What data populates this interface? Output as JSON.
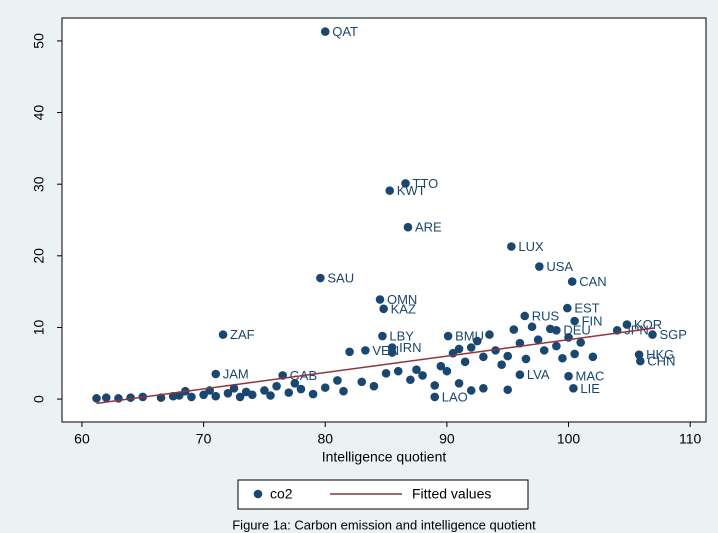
{
  "chart_data": {
    "type": "scatter",
    "caption": "Figure 1a: Carbon emission and intelligence quotient",
    "xlabel": "Intelligence quotient",
    "xlim": [
      58.36,
      111.3
    ],
    "ylim": [
      -3.2,
      53.2
    ],
    "xticks": [
      60,
      70,
      80,
      90,
      100,
      110
    ],
    "yticks": [
      0,
      10,
      20,
      30,
      40,
      50
    ],
    "series": [
      {
        "name": "co2",
        "color": "#1a476f",
        "kind": "scatter",
        "x": [
          80,
          86.6,
          85.3,
          86.8,
          95.3,
          97.6,
          100.3,
          79.6,
          84.5,
          84.8,
          99.9,
          104.8,
          104,
          106.9,
          105.8,
          105.9,
          71.6,
          84.7,
          90.1,
          96.4,
          100.5,
          99,
          100,
          100.4,
          96,
          71,
          76.5,
          85.5,
          83.3,
          89,
          61.2,
          62,
          63,
          64,
          65,
          66.5,
          67.5,
          68,
          68.5,
          69,
          70,
          70.5,
          71,
          72,
          72.5,
          73,
          73.5,
          74,
          75,
          75.5,
          76,
          77,
          77.5,
          78,
          79,
          80,
          81,
          81.5,
          82,
          83,
          84,
          85,
          85.5,
          86,
          87,
          87.5,
          88,
          89,
          89.5,
          90,
          90.5,
          91,
          91.5,
          92,
          92.5,
          93,
          93.5,
          94,
          94.5,
          95,
          95.5,
          96,
          96.5,
          97,
          97.5,
          98,
          98.5,
          99,
          99.5,
          100,
          100.5,
          101,
          102,
          93,
          92,
          91,
          95
        ],
        "values": [
          51.3,
          30.1,
          29.1,
          24,
          21.3,
          18.5,
          16.4,
          16.9,
          13.9,
          12.6,
          12.7,
          10.4,
          9.6,
          9,
          6.2,
          5.3,
          9,
          8.8,
          8.8,
          11.6,
          10.9,
          9.6,
          3.2,
          1.5,
          3.4,
          3.5,
          3.3,
          7.2,
          6.8,
          0.3,
          0.1,
          0.2,
          0.1,
          0.2,
          0.3,
          0.2,
          0.4,
          0.5,
          1.1,
          0.3,
          0.6,
          1.2,
          0.4,
          0.8,
          1.5,
          0.3,
          1,
          0.6,
          1.2,
          0.5,
          1.8,
          0.9,
          2.2,
          1.4,
          0.7,
          1.6,
          2.6,
          1.1,
          6.6,
          2.4,
          1.8,
          3.6,
          6.5,
          3.9,
          2.7,
          4.1,
          3.3,
          1.9,
          4.6,
          3.9,
          6.4,
          7,
          5.2,
          7.2,
          8.1,
          5.9,
          9,
          6.8,
          4.8,
          6,
          9.7,
          7.8,
          5.6,
          10.1,
          8.3,
          6.8,
          9.8,
          7.4,
          5.7,
          8.6,
          6.3,
          7.9,
          5.9,
          1.5,
          1.2,
          2.2,
          1.3
        ],
        "labels": [
          "QAT",
          "TTO",
          "KWT",
          "ARE",
          "LUX",
          "USA",
          "CAN",
          "SAU",
          "OMN",
          "KAZ",
          "EST",
          "KOR",
          "JPN",
          "SGP",
          "HKG",
          "CHN",
          "ZAF",
          "LBY",
          "BMU",
          "RUS",
          "FIN",
          "DEU",
          "MAC",
          "LIE",
          "LVA",
          "JAM",
          "GAB",
          "IRN",
          "VEN",
          "LAO",
          null,
          null,
          null,
          null,
          null,
          null,
          null,
          null,
          null,
          null,
          null,
          null,
          null,
          null,
          null,
          null,
          null,
          null,
          null,
          null,
          null,
          null,
          null,
          null,
          null,
          null,
          null,
          null,
          null,
          null,
          null,
          null,
          null,
          null,
          null,
          null,
          null,
          null,
          null,
          null,
          null,
          null,
          null,
          null,
          null,
          null,
          null,
          null,
          null,
          null,
          null,
          null,
          null,
          null,
          null,
          null,
          null,
          null,
          null,
          null,
          null,
          null,
          null,
          null,
          null,
          null,
          null
        ]
      },
      {
        "name": "Fitted values",
        "color": "#90353b",
        "kind": "line",
        "x": [
          61.2,
          107
        ],
        "values": [
          -0.6,
          9.9
        ]
      }
    ]
  }
}
